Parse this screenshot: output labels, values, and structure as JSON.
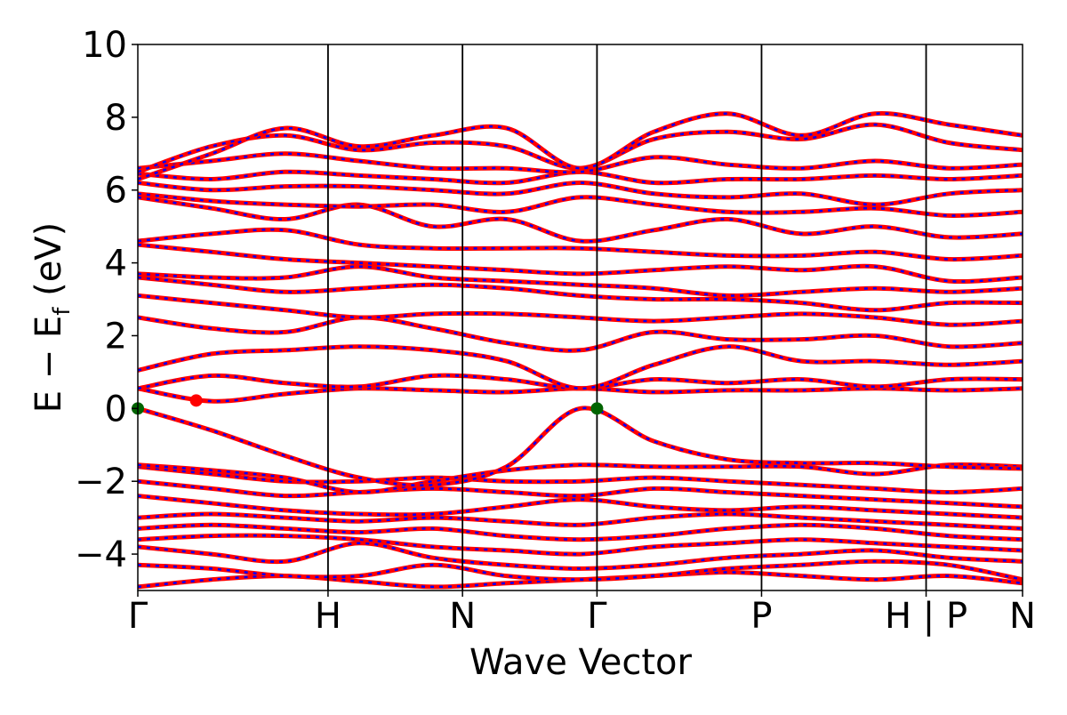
{
  "chart_data": {
    "type": "line",
    "title": "",
    "xlabel": "Wave Vector",
    "ylabel": "E − E",
    "ylabel_sub": "f",
    "ylabel_unit": " (eV)",
    "ylim": [
      -5,
      10
    ],
    "yticks": [
      -4,
      -2,
      0,
      2,
      4,
      6,
      8,
      10
    ],
    "ytick_labels": [
      "−4",
      "−2",
      "0",
      "2",
      "4",
      "6",
      "8",
      "10"
    ],
    "xlim": [
      0,
      1
    ],
    "kpoints": [
      {
        "label": "Γ",
        "x": 0.0
      },
      {
        "label": "H",
        "x": 0.215
      },
      {
        "label": "N",
        "x": 0.367
      },
      {
        "label": "Γ",
        "x": 0.519
      },
      {
        "label": "P",
        "x": 0.705
      },
      {
        "label": "H | P",
        "x": 0.891
      },
      {
        "label": "N",
        "x": 1.0
      }
    ],
    "grid": false,
    "series_colors": {
      "band_main": "#ff0000",
      "band_overlay": "#0000ff"
    },
    "markers": [
      {
        "x": 0.0,
        "y": 0.0,
        "color": "#006400"
      },
      {
        "x": 0.519,
        "y": 0.0,
        "color": "#006400"
      },
      {
        "x": 0.066,
        "y": 0.22,
        "color": "#ff0000"
      }
    ],
    "bands": [
      [
        -4.9,
        -4.7,
        -4.6,
        -4.75,
        -4.9,
        -4.8,
        -4.7,
        -4.6,
        -4.5,
        -4.6,
        -4.7,
        -4.6,
        -4.8
      ],
      [
        -4.3,
        -4.4,
        -4.6,
        -4.6,
        -4.3,
        -4.6,
        -4.7,
        -4.6,
        -4.4,
        -4.3,
        -4.2,
        -4.3,
        -4.7
      ],
      [
        -3.8,
        -4.0,
        -4.2,
        -3.7,
        -4.1,
        -4.3,
        -4.4,
        -4.3,
        -4.1,
        -4.0,
        -3.9,
        -4.1,
        -4.2
      ],
      [
        -3.6,
        -3.5,
        -3.5,
        -3.6,
        -3.8,
        -3.9,
        -4.0,
        -3.8,
        -3.7,
        -3.6,
        -3.7,
        -3.8,
        -3.9
      ],
      [
        -3.3,
        -3.2,
        -3.3,
        -3.4,
        -3.3,
        -3.5,
        -3.6,
        -3.5,
        -3.3,
        -3.2,
        -3.3,
        -3.5,
        -3.6
      ],
      [
        -3.0,
        -2.9,
        -3.0,
        -3.1,
        -3.0,
        -3.1,
        -3.2,
        -3.0,
        -2.9,
        -3.0,
        -3.1,
        -3.2,
        -3.3
      ],
      [
        -2.4,
        -2.6,
        -2.8,
        -2.9,
        -2.9,
        -2.7,
        -2.5,
        -2.7,
        -2.8,
        -2.7,
        -2.8,
        -2.9,
        -3.0
      ],
      [
        -2.0,
        -2.2,
        -2.4,
        -2.3,
        -2.2,
        -2.3,
        -2.4,
        -2.2,
        -2.3,
        -2.4,
        -2.5,
        -2.6,
        -2.7
      ],
      [
        -1.6,
        -1.8,
        -2.0,
        -2.0,
        -1.9,
        -2.0,
        -2.0,
        -1.9,
        -2.0,
        -2.1,
        -2.2,
        -2.3,
        -2.2
      ],
      [
        -1.55,
        -1.7,
        -1.9,
        -2.3,
        -2.0,
        -1.7,
        -1.55,
        -1.6,
        -1.6,
        -1.6,
        -1.8,
        -1.55,
        -1.6
      ],
      [
        0.0,
        -0.6,
        -1.3,
        -1.9,
        -2.1,
        -1.6,
        0.0,
        -0.9,
        -1.4,
        -1.5,
        -1.5,
        -1.6,
        -1.65
      ],
      [
        0.55,
        0.2,
        0.4,
        0.55,
        0.5,
        0.45,
        0.55,
        0.45,
        0.5,
        0.5,
        0.55,
        0.5,
        0.55
      ],
      [
        0.55,
        0.9,
        0.7,
        0.6,
        0.9,
        0.8,
        0.55,
        0.8,
        0.7,
        0.8,
        0.6,
        0.8,
        0.8
      ],
      [
        1.05,
        1.5,
        1.6,
        1.7,
        1.6,
        1.3,
        0.55,
        1.2,
        1.7,
        1.3,
        1.3,
        1.2,
        1.3
      ],
      [
        2.5,
        2.2,
        2.1,
        2.5,
        2.2,
        1.8,
        1.6,
        2.1,
        1.9,
        1.9,
        2.0,
        1.7,
        1.8
      ],
      [
        3.1,
        2.9,
        2.7,
        2.5,
        2.6,
        2.6,
        2.5,
        2.4,
        2.5,
        2.6,
        2.5,
        2.3,
        2.4
      ],
      [
        3.6,
        3.4,
        3.2,
        3.3,
        3.4,
        3.3,
        3.1,
        3.0,
        3.0,
        2.9,
        2.7,
        2.9,
        2.9
      ],
      [
        3.7,
        3.6,
        3.6,
        3.9,
        3.6,
        3.5,
        3.4,
        3.3,
        3.1,
        3.2,
        3.3,
        3.2,
        3.3
      ],
      [
        4.5,
        4.3,
        4.1,
        4.0,
        3.9,
        3.8,
        3.7,
        3.8,
        3.9,
        3.8,
        3.9,
        3.5,
        3.6
      ],
      [
        4.6,
        4.8,
        4.9,
        4.5,
        4.4,
        4.4,
        4.4,
        4.3,
        4.2,
        4.2,
        4.3,
        4.1,
        4.2
      ],
      [
        5.8,
        5.5,
        5.2,
        5.6,
        5.0,
        5.2,
        4.6,
        4.9,
        5.2,
        4.8,
        5.0,
        4.7,
        4.8
      ],
      [
        5.9,
        5.7,
        5.6,
        5.55,
        5.6,
        5.4,
        5.8,
        5.6,
        5.4,
        5.4,
        5.5,
        5.3,
        5.4
      ],
      [
        6.2,
        6.0,
        6.1,
        6.1,
        6.0,
        5.9,
        6.2,
        5.9,
        5.8,
        5.9,
        5.6,
        5.9,
        6.0
      ],
      [
        6.45,
        6.3,
        6.5,
        6.4,
        6.3,
        6.2,
        6.5,
        6.2,
        6.3,
        6.3,
        6.4,
        6.3,
        6.4
      ],
      [
        6.6,
        6.8,
        7.0,
        6.8,
        6.6,
        6.6,
        6.5,
        6.9,
        6.7,
        6.6,
        6.8,
        6.6,
        6.7
      ],
      [
        6.5,
        7.2,
        7.5,
        7.1,
        7.3,
        7.2,
        6.6,
        7.4,
        7.6,
        7.4,
        7.8,
        7.3,
        7.1
      ],
      [
        6.3,
        7.0,
        7.7,
        7.2,
        7.5,
        7.7,
        6.6,
        7.6,
        8.1,
        7.5,
        8.1,
        7.8,
        7.5
      ]
    ]
  }
}
